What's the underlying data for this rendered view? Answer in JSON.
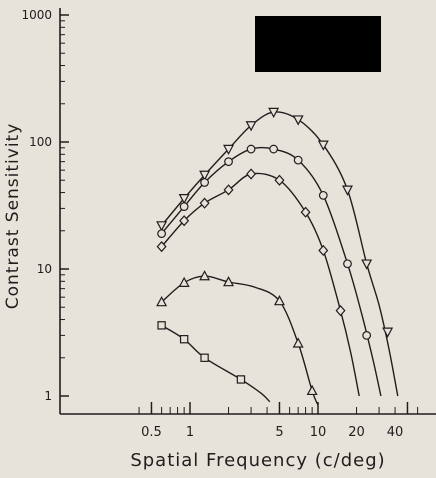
{
  "chart_data": {
    "type": "line",
    "title": "",
    "xlabel": "Spatial  Frequency  (c/deg)",
    "ylabel": "Contrast   Sensitivity",
    "xscale": "log",
    "yscale": "log",
    "xlim": [
      0.4,
      60
    ],
    "ylim": [
      0.8,
      1000
    ],
    "xticks": [
      {
        "value": 0.5,
        "label": "0.5"
      },
      {
        "value": 1,
        "label": "1"
      },
      {
        "value": 5,
        "label": "5"
      },
      {
        "value": 10,
        "label": "10"
      },
      {
        "value": 20,
        "label": "20"
      },
      {
        "value": 40,
        "label": "40"
      }
    ],
    "yticks": [
      {
        "value": 1,
        "label": "1"
      },
      {
        "value": 10,
        "label": "10"
      },
      {
        "value": 100,
        "label": "100"
      },
      {
        "value": 1000,
        "label": "1000"
      }
    ],
    "grid": false,
    "legend": "none",
    "colors": {
      "ink": "#1e1e1e",
      "paper": "#e8e3da",
      "redaction": "#000000"
    },
    "series": [
      {
        "marker": "triangle-down",
        "points": [
          [
            0.6,
            22
          ],
          [
            0.9,
            36
          ],
          [
            1.3,
            55
          ],
          [
            2,
            88
          ],
          [
            3,
            135
          ],
          [
            4.5,
            172
          ],
          [
            7,
            150
          ],
          [
            11,
            95
          ],
          [
            17,
            42
          ],
          [
            24,
            11
          ],
          [
            35,
            3.2
          ]
        ],
        "curve": [
          [
            0.6,
            22
          ],
          [
            0.9,
            36
          ],
          [
            1.3,
            55
          ],
          [
            2,
            88
          ],
          [
            3,
            135
          ],
          [
            4.5,
            172
          ],
          [
            7,
            150
          ],
          [
            11,
            95
          ],
          [
            17,
            42
          ],
          [
            24,
            11
          ],
          [
            30,
            5.2
          ],
          [
            36,
            2.3
          ],
          [
            42,
            1.0
          ]
        ]
      },
      {
        "marker": "circle",
        "points": [
          [
            0.6,
            19
          ],
          [
            0.9,
            31
          ],
          [
            1.3,
            48
          ],
          [
            2,
            70
          ],
          [
            3,
            88
          ],
          [
            4.5,
            88
          ],
          [
            7,
            72
          ],
          [
            11,
            38
          ],
          [
            17,
            11
          ],
          [
            24,
            3.0
          ]
        ],
        "curve": [
          [
            0.6,
            19
          ],
          [
            0.9,
            31
          ],
          [
            1.3,
            48
          ],
          [
            2,
            70
          ],
          [
            3,
            88
          ],
          [
            4.5,
            88
          ],
          [
            7,
            72
          ],
          [
            11,
            38
          ],
          [
            17,
            11
          ],
          [
            22,
            4.4
          ],
          [
            27,
            1.9
          ],
          [
            31,
            1.0
          ]
        ]
      },
      {
        "marker": "diamond",
        "points": [
          [
            0.6,
            15
          ],
          [
            0.9,
            24
          ],
          [
            1.3,
            33
          ],
          [
            2,
            42
          ],
          [
            3,
            56
          ],
          [
            5,
            50
          ],
          [
            8,
            28
          ],
          [
            11,
            14
          ],
          [
            15,
            4.7
          ]
        ],
        "curve": [
          [
            0.6,
            15
          ],
          [
            0.9,
            24
          ],
          [
            1.3,
            33
          ],
          [
            2,
            42
          ],
          [
            3,
            56
          ],
          [
            5,
            50
          ],
          [
            8,
            28
          ],
          [
            11,
            14
          ],
          [
            15,
            4.7
          ],
          [
            18,
            2.2
          ],
          [
            21,
            1.0
          ]
        ]
      },
      {
        "marker": "triangle-up",
        "points": [
          [
            0.6,
            5.5
          ],
          [
            0.9,
            7.8
          ],
          [
            1.3,
            8.8
          ],
          [
            2,
            7.9
          ],
          [
            5,
            5.6
          ],
          [
            7,
            2.6
          ],
          [
            9,
            1.1
          ]
        ],
        "curve": [
          [
            0.6,
            5.5
          ],
          [
            0.9,
            7.8
          ],
          [
            1.3,
            8.8
          ],
          [
            2,
            7.9
          ],
          [
            3.2,
            7.2
          ],
          [
            5,
            5.6
          ],
          [
            7,
            2.6
          ],
          [
            9,
            1.1
          ],
          [
            10,
            0.85
          ]
        ]
      },
      {
        "marker": "square",
        "points": [
          [
            0.6,
            3.6
          ],
          [
            0.9,
            2.8
          ],
          [
            1.3,
            2.0
          ],
          [
            2.5,
            1.35
          ]
        ],
        "curve": [
          [
            0.6,
            3.6
          ],
          [
            0.9,
            2.8
          ],
          [
            1.3,
            2.0
          ],
          [
            2.5,
            1.35
          ],
          [
            3.6,
            1.05
          ],
          [
            4.2,
            0.9
          ]
        ]
      }
    ]
  }
}
